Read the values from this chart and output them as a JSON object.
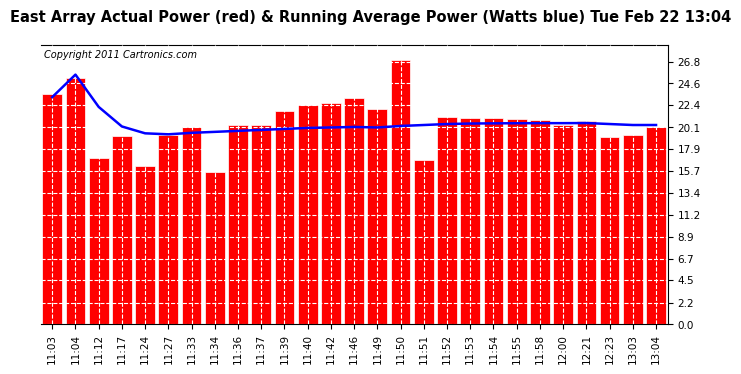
{
  "title": "East Array Actual Power (red) & Running Average Power (Watts blue) Tue Feb 22 13:04",
  "copyright": "Copyright 2011 Cartronics.com",
  "x_labels": [
    "11:03",
    "11:04",
    "11:12",
    "11:17",
    "11:24",
    "11:27",
    "11:33",
    "11:34",
    "11:36",
    "11:37",
    "11:39",
    "11:40",
    "11:42",
    "11:46",
    "11:49",
    "11:50",
    "11:51",
    "11:52",
    "11:53",
    "11:54",
    "11:55",
    "11:58",
    "12:00",
    "12:21",
    "12:23",
    "13:03",
    "13:04"
  ],
  "bar_values": [
    23.5,
    25.2,
    17.0,
    19.2,
    16.2,
    19.3,
    20.1,
    15.5,
    20.3,
    20.4,
    21.8,
    22.4,
    22.6,
    23.1,
    22.0,
    27.0,
    16.8,
    21.2,
    21.1,
    21.1,
    21.0,
    20.9,
    20.3,
    20.8,
    19.1,
    19.3,
    20.1
  ],
  "avg_values": [
    23.2,
    25.5,
    22.2,
    20.2,
    19.5,
    19.4,
    19.55,
    19.65,
    19.75,
    19.85,
    19.95,
    20.05,
    20.1,
    20.15,
    20.1,
    20.25,
    20.35,
    20.45,
    20.5,
    20.52,
    20.53,
    20.54,
    20.54,
    20.55,
    20.45,
    20.35,
    20.35
  ],
  "bar_color": "#ff0000",
  "avg_color": "#0000ff",
  "bg_color": "#ffffff",
  "grid_color": "#ffffff",
  "y_ticks": [
    0.0,
    2.2,
    4.5,
    6.7,
    8.9,
    11.2,
    13.4,
    15.7,
    17.9,
    20.1,
    22.4,
    24.6,
    26.8
  ],
  "ylim": [
    0,
    28.5
  ],
  "title_fontsize": 10.5,
  "copyright_fontsize": 7,
  "tick_fontsize": 7.5
}
